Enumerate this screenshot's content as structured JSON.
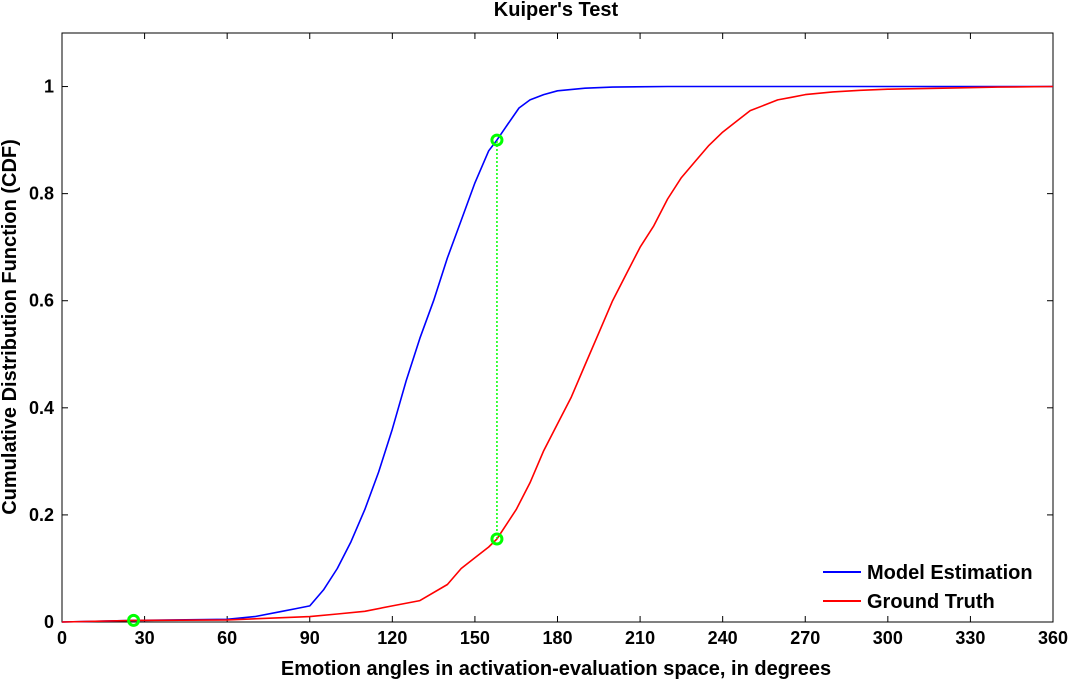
{
  "chart_data": {
    "type": "line",
    "title": "Kuiper's Test",
    "xlabel": "Emotion angles in activation-evaluation space, in degrees",
    "ylabel": "Cumulative Distribution Function (CDF)",
    "xlim": [
      0,
      360
    ],
    "ylim": [
      0,
      1.1
    ],
    "xticks": [
      0,
      30,
      60,
      90,
      120,
      150,
      180,
      210,
      240,
      270,
      300,
      330,
      360
    ],
    "yticks": [
      0,
      0.2,
      0.4,
      0.6,
      0.8,
      1
    ],
    "xtick_labels": [
      "0",
      "30",
      "60",
      "90",
      "120",
      "150",
      "180",
      "210",
      "240",
      "270",
      "300",
      "330",
      "360"
    ],
    "ytick_labels": [
      "0",
      "0.2",
      "0.4",
      "0.6",
      "0.8",
      "1"
    ],
    "grid": false,
    "legend_position": "bottom-right",
    "series": [
      {
        "name": "Model Estimation",
        "color": "#0000ff",
        "x": [
          0,
          26,
          60,
          70,
          80,
          85,
          90,
          95,
          100,
          105,
          110,
          115,
          120,
          125,
          130,
          135,
          140,
          145,
          150,
          155,
          158,
          162,
          166,
          170,
          175,
          180,
          190,
          200,
          220,
          260,
          300,
          345,
          360
        ],
        "y": [
          0,
          0.003,
          0.005,
          0.01,
          0.02,
          0.025,
          0.03,
          0.06,
          0.1,
          0.15,
          0.21,
          0.28,
          0.36,
          0.45,
          0.53,
          0.6,
          0.68,
          0.75,
          0.82,
          0.88,
          0.9,
          0.93,
          0.96,
          0.975,
          0.985,
          0.992,
          0.997,
          0.999,
          1.0,
          1.0,
          1.0,
          1.0,
          1.0
        ]
      },
      {
        "name": "Ground Truth",
        "color": "#ff0000",
        "x": [
          0,
          26,
          60,
          80,
          90,
          100,
          110,
          120,
          130,
          140,
          145,
          150,
          155,
          158,
          165,
          170,
          175,
          180,
          185,
          190,
          195,
          200,
          205,
          210,
          215,
          220,
          225,
          230,
          235,
          240,
          245,
          250,
          255,
          260,
          265,
          270,
          280,
          290,
          300,
          320,
          340,
          360
        ],
        "y": [
          0,
          0.003,
          0.004,
          0.008,
          0.01,
          0.015,
          0.02,
          0.03,
          0.04,
          0.07,
          0.1,
          0.12,
          0.14,
          0.155,
          0.21,
          0.26,
          0.32,
          0.37,
          0.42,
          0.48,
          0.54,
          0.6,
          0.65,
          0.7,
          0.74,
          0.79,
          0.83,
          0.86,
          0.89,
          0.915,
          0.935,
          0.955,
          0.965,
          0.975,
          0.98,
          0.985,
          0.99,
          0.993,
          0.995,
          0.997,
          0.999,
          1.0
        ]
      }
    ],
    "markers": [
      {
        "x": 26,
        "y": 0.003,
        "color": "#00ff00"
      },
      {
        "x": 158,
        "y": 0.9,
        "color": "#00ff00"
      },
      {
        "x": 158,
        "y": 0.155,
        "color": "#00ff00"
      }
    ],
    "annotation_line": {
      "x": 158,
      "y_from": 0.155,
      "y_to": 0.9,
      "color": "#00ff00",
      "style": "dotted"
    }
  }
}
